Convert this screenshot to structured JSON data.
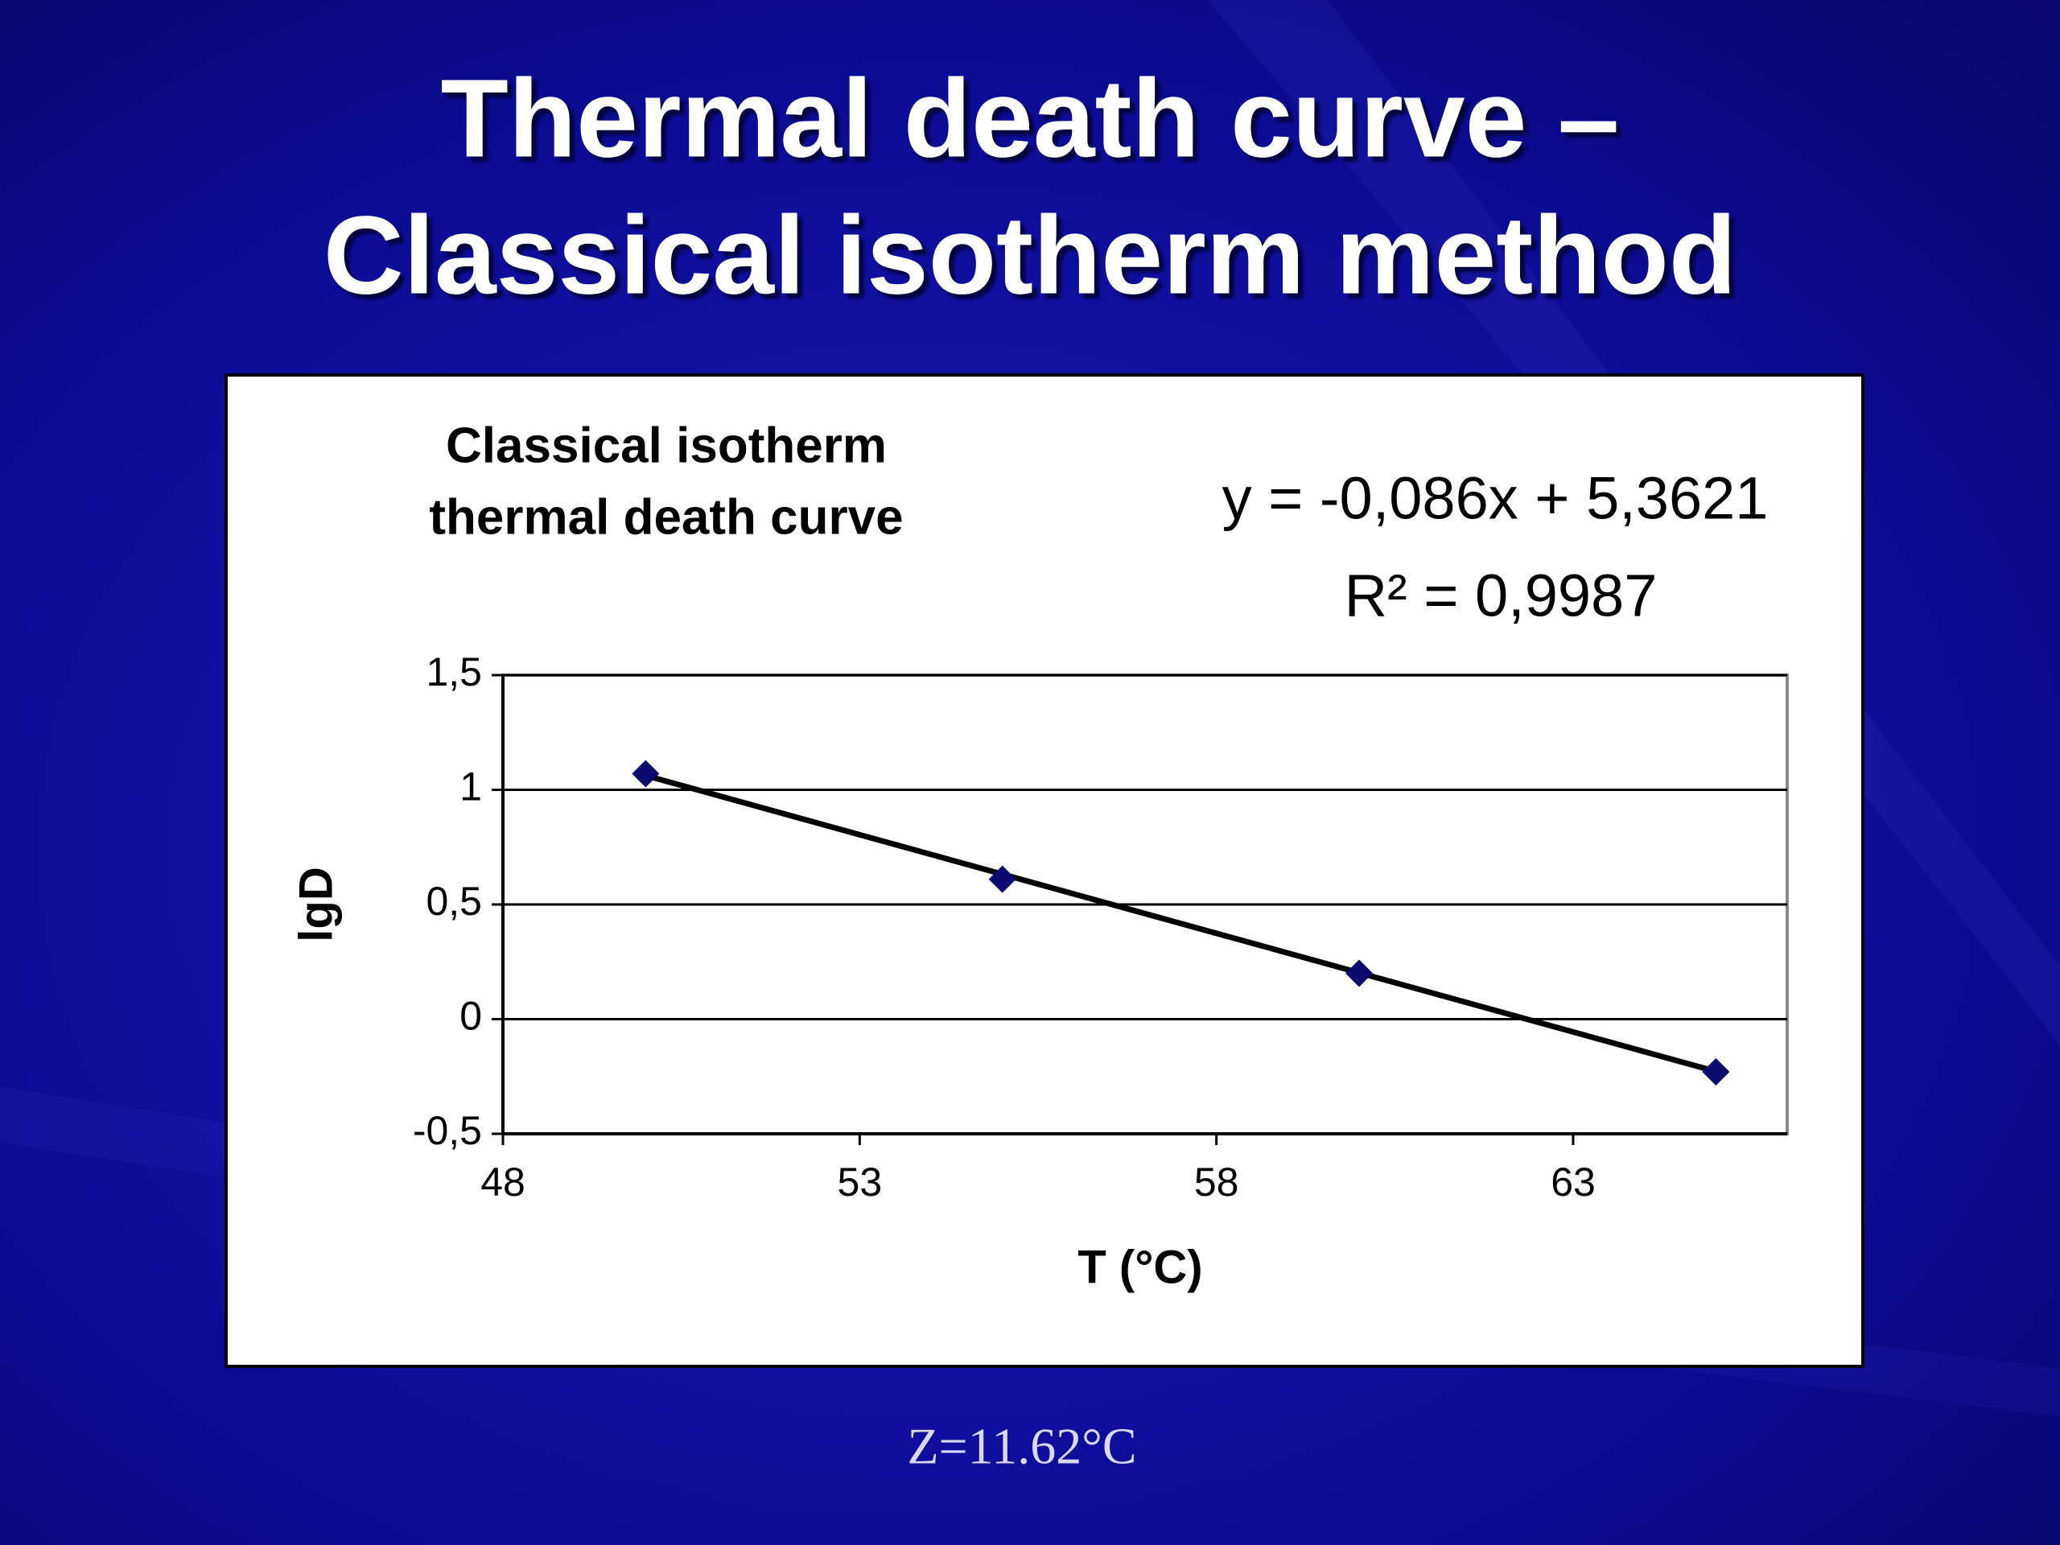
{
  "slide_title": [
    "Thermal death curve –",
    "Classical isotherm method"
  ],
  "chart_data": {
    "type": "scatter",
    "title": [
      "Classical isotherm",
      "thermal death curve"
    ],
    "x_label": "T (°C)",
    "y_label": "lgD",
    "x": [
      50,
      55,
      60,
      65
    ],
    "series": [
      {
        "color": "#0a0a6e",
        "values": [
          1.07,
          0.61,
          0.2,
          -0.23
        ]
      }
    ],
    "trendline": {
      "slope": -0.086,
      "intercept": 5.3621,
      "color": "#000000",
      "equation": "y = -0,086x + 5,3621",
      "r_squared": "R² = 0,9987"
    },
    "xlim": [
      48,
      66
    ],
    "xticks": [
      48,
      53,
      58,
      63
    ],
    "ylim": [
      -0.5,
      1.5
    ],
    "yticks": [
      {
        "value": -0.5,
        "label": "-0,5"
      },
      0,
      {
        "value": 0.5,
        "label": "0,5"
      },
      1,
      {
        "value": 1.5,
        "label": "1,5"
      }
    ],
    "grid": true
  },
  "footnote": "Z=11.62°C"
}
